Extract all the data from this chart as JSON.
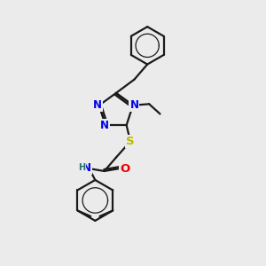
{
  "background_color": "#ebebeb",
  "bond_color": "#1a1a1a",
  "bond_width": 1.6,
  "atom_colors": {
    "N": "#0000ee",
    "S": "#bbbb00",
    "O": "#ee0000",
    "H": "#207070",
    "C": "#1a1a1a"
  },
  "font_size_atom": 8.5
}
